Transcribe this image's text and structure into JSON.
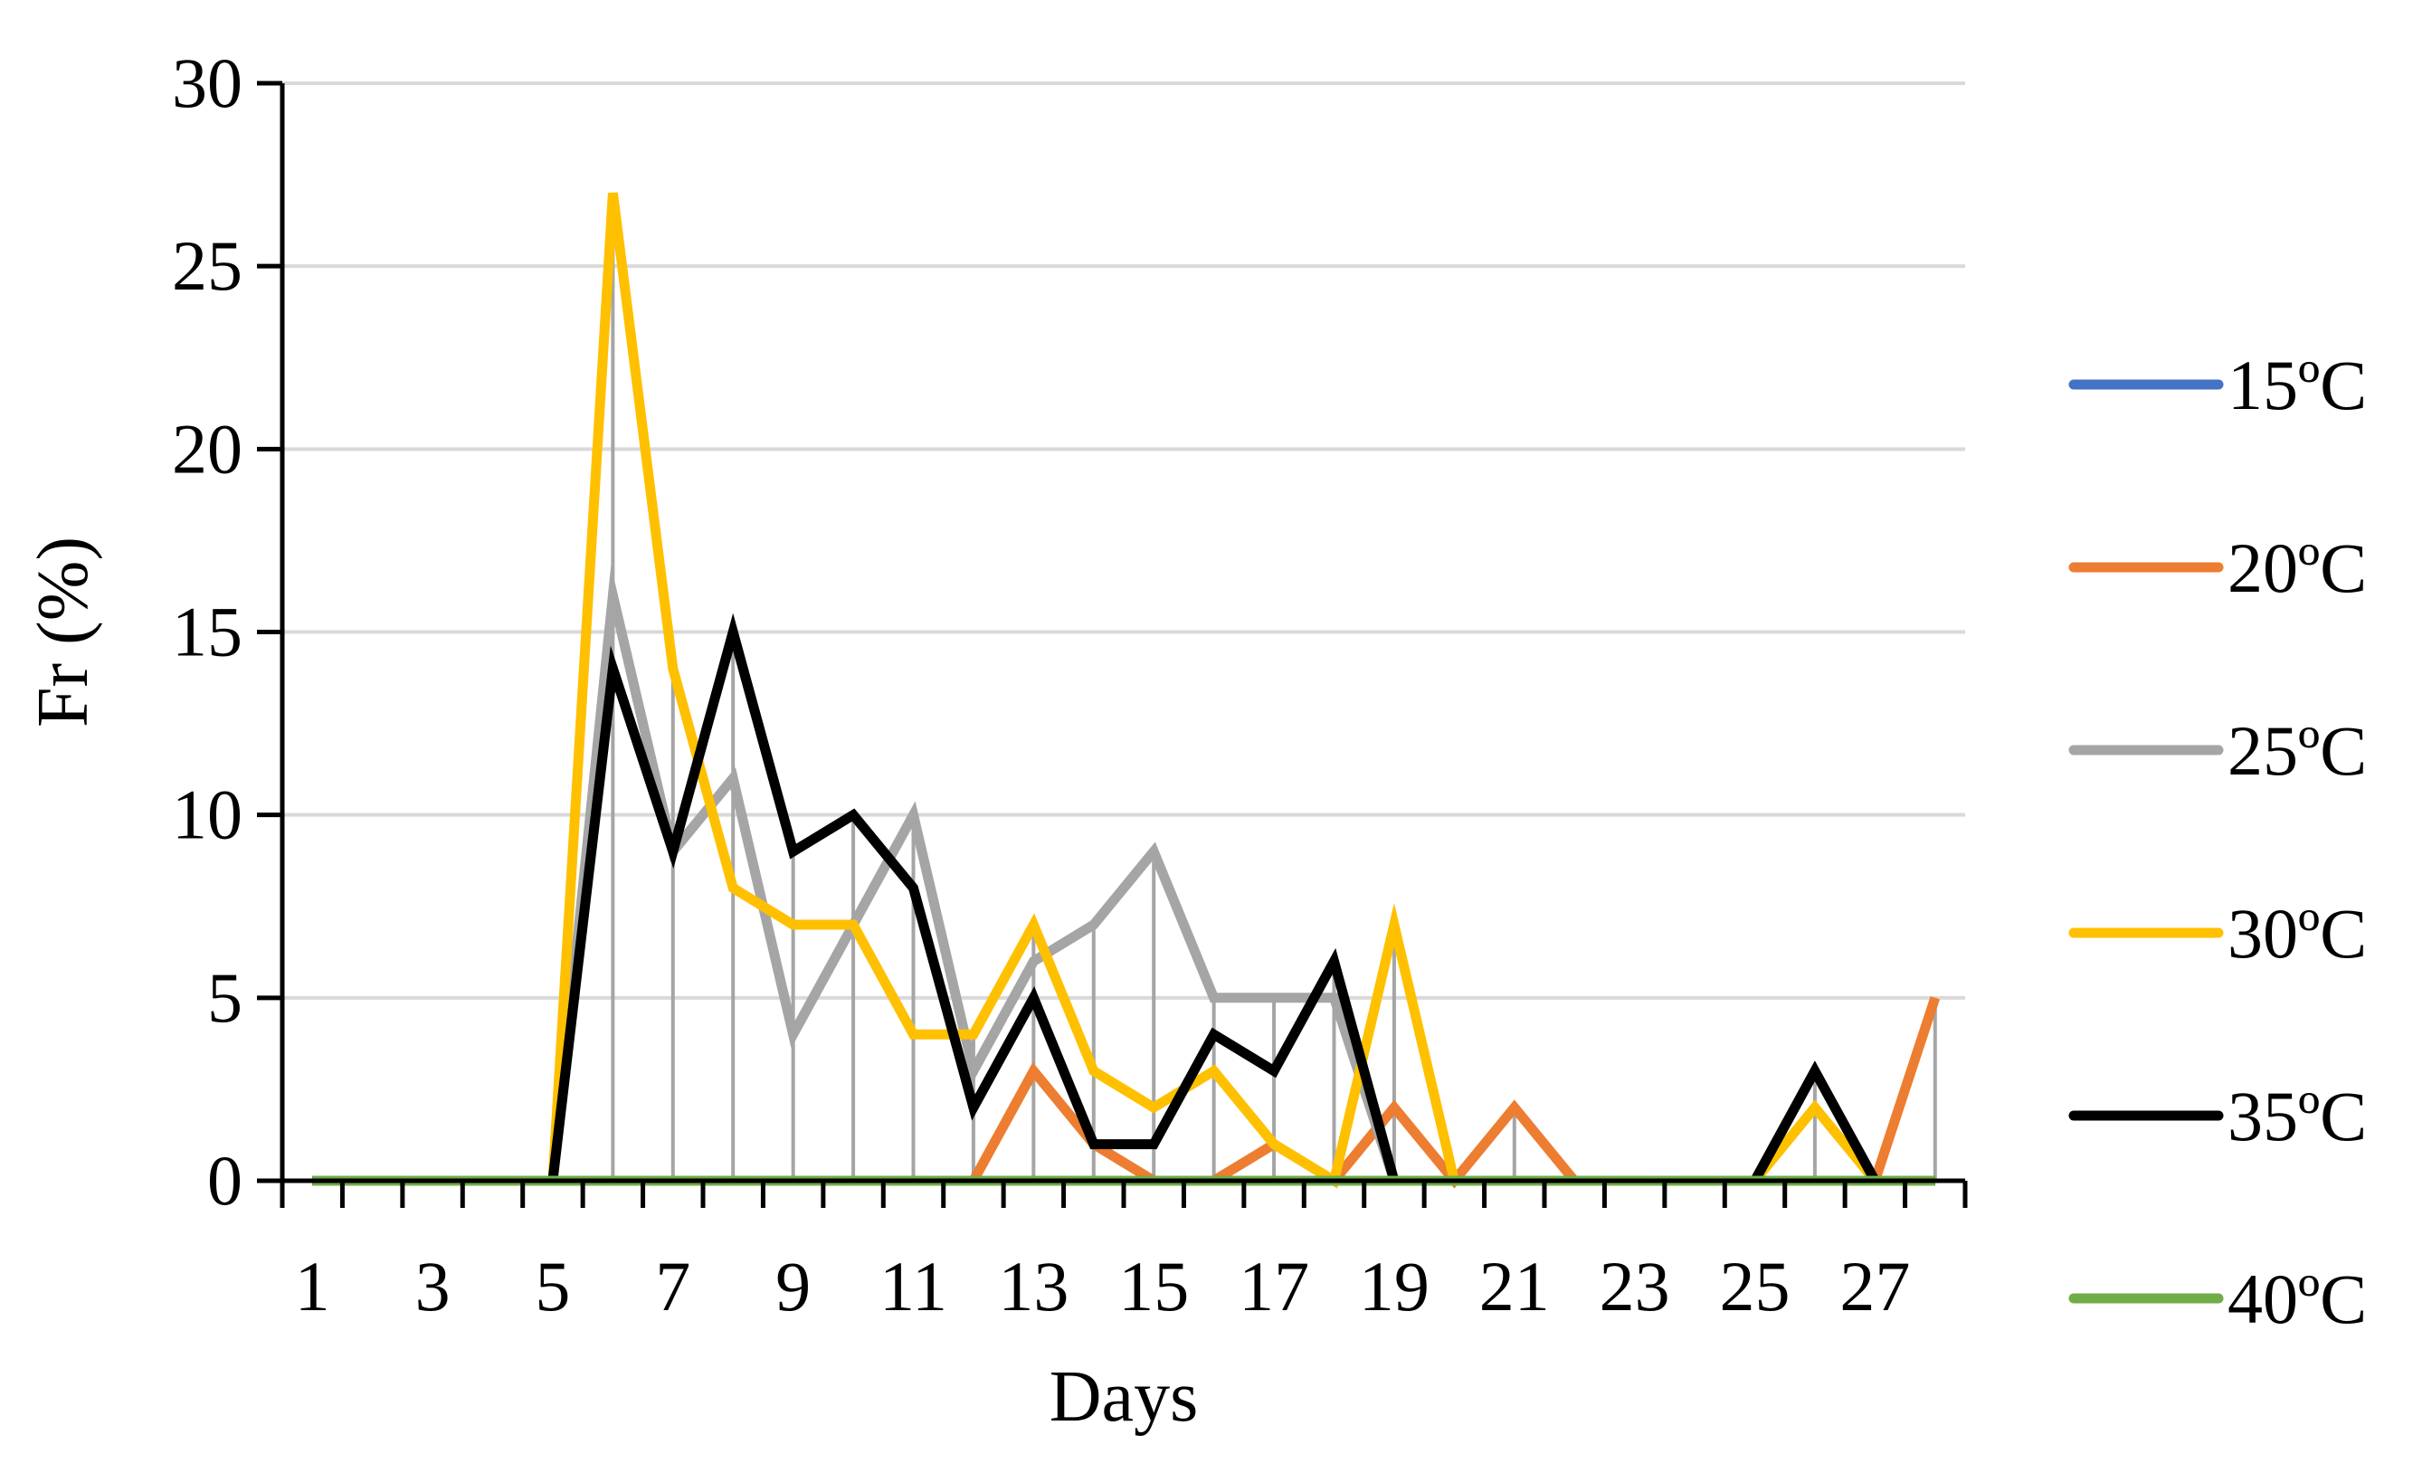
{
  "chart_data": {
    "type": "line",
    "xlabel": "Days",
    "ylabel": "Fr (%)",
    "ylim": [
      0,
      30
    ],
    "yticks": [
      0,
      5,
      10,
      15,
      20,
      25,
      30
    ],
    "x": [
      1,
      2,
      3,
      4,
      5,
      6,
      7,
      8,
      9,
      10,
      11,
      12,
      13,
      14,
      15,
      16,
      17,
      18,
      19,
      20,
      21,
      22,
      23,
      24,
      25,
      26,
      27,
      28
    ],
    "xtick_labels": [
      "1",
      "3",
      "5",
      "7",
      "9",
      "11",
      "13",
      "15",
      "17",
      "19",
      "21",
      "23",
      "25",
      "27"
    ],
    "grid": "horizontal",
    "legend_position": "right",
    "series": [
      {
        "name": "15ºC",
        "color": "#4472c4",
        "values": [
          0,
          0,
          0,
          0,
          0,
          0,
          0,
          0,
          0,
          0,
          0,
          0,
          0,
          0,
          0,
          0,
          0,
          0,
          0,
          0,
          0,
          0,
          0,
          0,
          0,
          0,
          0,
          0
        ]
      },
      {
        "name": "20ºC",
        "color": "#ed7d31",
        "values": [
          0,
          0,
          0,
          0,
          0,
          0,
          0,
          0,
          0,
          0,
          0,
          0,
          3,
          1,
          0,
          0,
          1,
          0,
          2,
          0,
          2,
          0,
          0,
          0,
          0,
          0,
          0,
          5
        ]
      },
      {
        "name": "25ºC",
        "color": "#a5a5a5",
        "values": [
          0,
          0,
          0,
          0,
          0,
          16,
          9,
          11,
          4,
          7,
          10,
          3,
          6,
          7,
          9,
          5,
          5,
          5,
          0,
          0,
          0,
          0,
          0,
          0,
          0,
          3,
          0,
          0
        ]
      },
      {
        "name": "30ºC",
        "color": "#ffc000",
        "values": [
          0,
          0,
          0,
          0,
          0,
          27,
          14,
          8,
          7,
          7,
          4,
          4,
          7,
          3,
          2,
          3,
          1,
          0,
          7,
          0,
          0,
          0,
          0,
          0,
          0,
          2,
          0,
          0
        ]
      },
      {
        "name": "35ºC",
        "color": "#000000",
        "values": [
          0,
          0,
          0,
          0,
          0,
          14,
          9,
          15,
          9,
          10,
          8,
          2,
          5,
          1,
          1,
          4,
          3,
          6,
          0,
          0,
          0,
          0,
          0,
          0,
          0,
          3,
          0,
          0
        ]
      },
      {
        "name": "40ºC",
        "color": "#70ad47",
        "values": [
          0,
          0,
          0,
          0,
          0,
          0,
          0,
          0,
          0,
          0,
          0,
          0,
          0,
          0,
          0,
          0,
          0,
          0,
          0,
          0,
          0,
          0,
          0,
          0,
          0,
          0,
          0,
          0
        ]
      }
    ],
    "drop_lines": true,
    "drop_line_color": "#a5a5a5"
  }
}
